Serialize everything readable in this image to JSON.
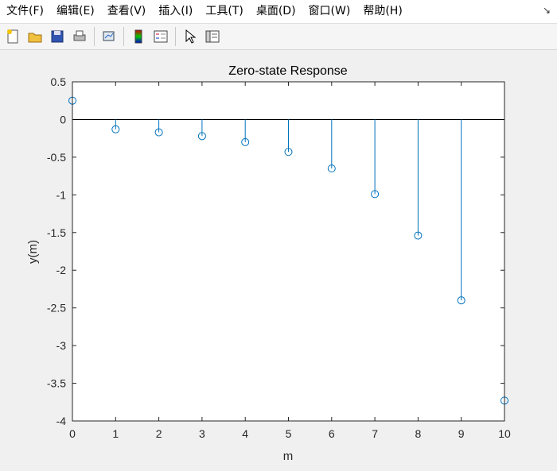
{
  "menu": {
    "items": [
      {
        "id": "file",
        "label": "文件(F)"
      },
      {
        "id": "edit",
        "label": "编辑(E)"
      },
      {
        "id": "view",
        "label": "查看(V)"
      },
      {
        "id": "insert",
        "label": "插入(I)"
      },
      {
        "id": "tools",
        "label": "工具(T)"
      },
      {
        "id": "desktop",
        "label": "桌面(D)"
      },
      {
        "id": "window",
        "label": "窗口(W)"
      },
      {
        "id": "help",
        "label": "帮助(H)"
      }
    ],
    "corner_glyph": "↘"
  },
  "toolbar": {
    "buttons": [
      {
        "name": "new-figure-icon"
      },
      {
        "name": "open-file-icon"
      },
      {
        "name": "save-icon"
      },
      {
        "name": "print-icon"
      },
      {
        "name": "link-plot-icon"
      },
      {
        "name": "colorbar-icon"
      },
      {
        "name": "legend-icon"
      },
      {
        "name": "edit-plot-pointer-icon"
      },
      {
        "name": "property-inspector-icon"
      }
    ]
  },
  "colors": {
    "stem": "#0072BD",
    "axes_bg": "#ffffff",
    "figure_bg": "#f0f0f0"
  },
  "chart_data": {
    "type": "stem",
    "title": "Zero-state Response",
    "xlabel": "m",
    "ylabel": "y(m)",
    "xlim": [
      0,
      10
    ],
    "ylim": [
      -4,
      0.5
    ],
    "xticks": [
      "0",
      "1",
      "2",
      "3",
      "4",
      "5",
      "6",
      "7",
      "8",
      "9",
      "10"
    ],
    "yticks": [
      "0.5",
      "0",
      "-0.5",
      "-1",
      "-1.5",
      "-2",
      "-2.5",
      "-3",
      "-3.5",
      "-4"
    ],
    "x": [
      0,
      1,
      2,
      3,
      4,
      5,
      6,
      7,
      8,
      9,
      10
    ],
    "y": [
      0.25,
      -0.13,
      -0.17,
      -0.22,
      -0.3,
      -0.43,
      -0.65,
      -0.99,
      -1.54,
      -2.4,
      -3.73
    ],
    "marker": "circle",
    "grid": false
  }
}
